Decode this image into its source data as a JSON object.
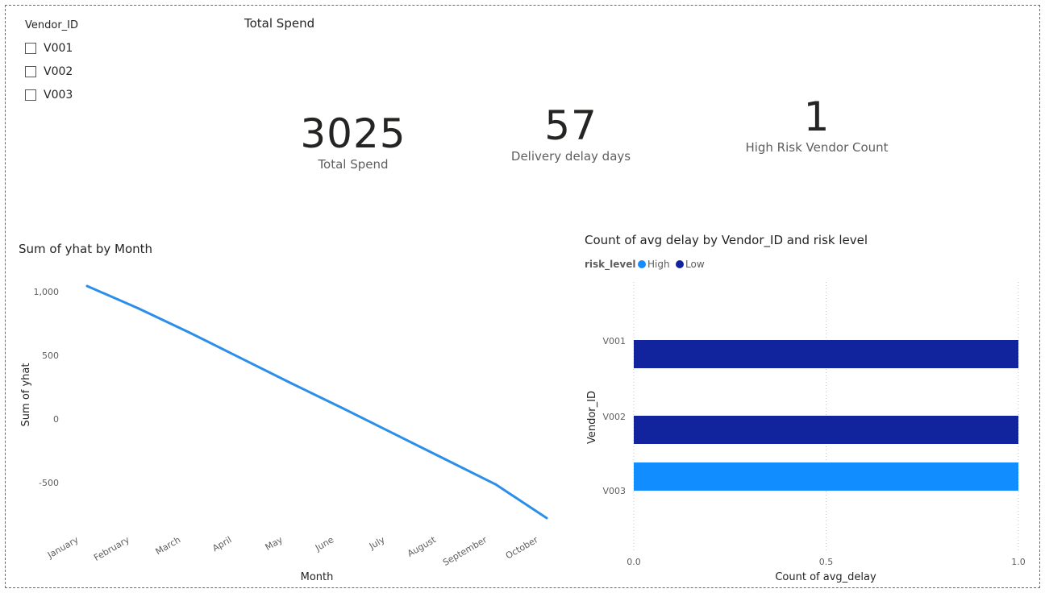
{
  "slicer": {
    "title": "Vendor_ID",
    "items": [
      "V001",
      "V002",
      "V003"
    ]
  },
  "cards_header": "Total Spend",
  "kpis": [
    {
      "value": "3025",
      "label": "Total Spend"
    },
    {
      "value": "57",
      "label": "Delivery delay days"
    },
    {
      "value": "1",
      "label": "High Risk Vendor Count"
    }
  ],
  "colors": {
    "line": "#2b8fea",
    "high": "#118dff",
    "low": "#12239e",
    "axis_text": "#605e5c",
    "grid": "#c8c6c4"
  },
  "chart_data": [
    {
      "type": "line",
      "title": "Sum of yhat by Month",
      "xlabel": "Month",
      "ylabel": "Sum of yhat",
      "categories": [
        "January",
        "February",
        "March",
        "April",
        "May",
        "June",
        "July",
        "August",
        "September",
        "October"
      ],
      "values": [
        1045,
        870,
        680,
        480,
        280,
        85,
        -115,
        -315,
        -515,
        -780
      ],
      "yticks": [
        1000,
        500,
        0,
        -500
      ],
      "ytick_labels": [
        "1,000",
        "500",
        "0",
        "-500"
      ],
      "ylim": [
        -780,
        1045
      ],
      "grid": false
    },
    {
      "type": "bar",
      "orientation": "horizontal",
      "title": "Count of avg delay by Vendor_ID and risk level",
      "legend_title": "risk_level",
      "legend": [
        "High",
        "Low"
      ],
      "xlabel": "Count of avg_delay",
      "ylabel": "Vendor_ID",
      "categories": [
        "V001",
        "V002",
        "V003"
      ],
      "series": [
        {
          "name": "High",
          "values": [
            0,
            0,
            1
          ]
        },
        {
          "name": "Low",
          "values": [
            1,
            1,
            0
          ]
        }
      ],
      "xticks": [
        0.0,
        0.5,
        1.0
      ],
      "xtick_labels": [
        "0.0",
        "0.5",
        "1.0"
      ],
      "xlim": [
        0,
        1
      ],
      "grid": true
    }
  ]
}
